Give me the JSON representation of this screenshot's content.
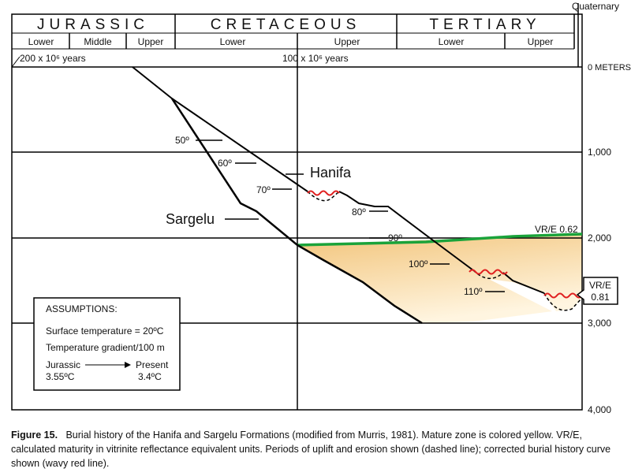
{
  "header": {
    "periods": [
      "JURASSIC",
      "CRETACEOUS",
      "TERTIARY"
    ],
    "quaternary": "Quaternary",
    "subperiods": [
      "Lower",
      "Middle",
      "Upper",
      "Lower",
      "Upper",
      "Lower",
      "Upper"
    ],
    "time_labels": [
      "200 x 10⁶ years",
      "100 x 10⁶ years"
    ]
  },
  "depth_labels": [
    "0 METERS",
    "1,000",
    "2,000",
    "3,000",
    "4,000"
  ],
  "labels": {
    "hanifa": "Hanifa",
    "sargelu": "Sargelu",
    "vre_top": "VR/E 0.62",
    "vre_box": [
      "VR/E",
      "0.81"
    ]
  },
  "isotherms": [
    "50º",
    "60º",
    "70º",
    "80º",
    "90º",
    "100º",
    "110º"
  ],
  "assumptions": {
    "title": "ASSUMPTIONS:",
    "lines": [
      "Surface temperature = 20ºC",
      "Temperature gradient/100 m"
    ],
    "from": {
      "label": "Jurassic",
      "value": "3.55ºC"
    },
    "to": {
      "label": "Present",
      "value": "3.4ºC"
    }
  },
  "caption": {
    "label": "Figure 15.",
    "text": "Burial history of the Hanifa and Sargelu Formations (modified from Murris, 1981).  Mature zone is colored yellow.  VR/E, calculated maturity in vitrinite reflectance equivalent units.  Periods of uplift and erosion shown (dashed line); corrected burial history curve shown (wavy red line)."
  }
}
